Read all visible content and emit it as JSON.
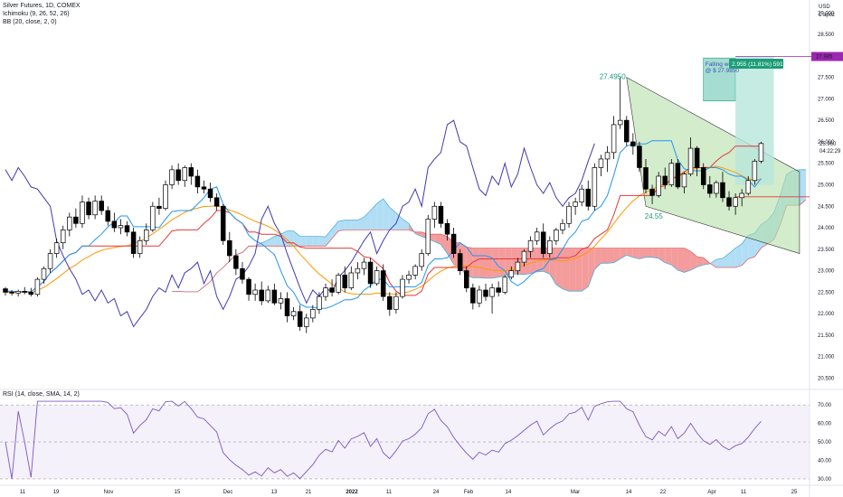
{
  "legend": {
    "symbol": "Silver Futures, 1D, COMEX",
    "ichimoku": "Ichimoku (9, 26, 52, 26)",
    "bb": "BB (20, close, 2, 0)",
    "rsi": "RSI (14, close, SMA, 14, 2)"
  },
  "axis": {
    "currency": "USD",
    "unit_label": "1 apoz",
    "price_ticks": [
      "29.000",
      "28.500",
      "28.000",
      "27.500",
      "27.000",
      "26.500",
      "26.000",
      "25.500",
      "25.000",
      "24.500",
      "24.000",
      "23.500",
      "23.000",
      "22.500",
      "22.000",
      "21.500",
      "21.000",
      "20.500"
    ],
    "price_values": [
      29.0,
      28.5,
      28.0,
      27.5,
      27.0,
      26.5,
      26.0,
      25.5,
      25.0,
      24.5,
      24.0,
      23.5,
      23.0,
      22.5,
      22.0,
      21.5,
      21.0,
      20.5
    ],
    "rsi_ticks": [
      "70.00",
      "60.00",
      "50.00",
      "40.00",
      "30.00"
    ],
    "rsi_values": [
      70,
      60,
      50,
      40,
      30
    ],
    "x_ticks": [
      "11",
      "19",
      "Nov",
      "15",
      "Dec",
      "13",
      "21",
      "2022",
      "11",
      "24",
      "Feb",
      "14",
      "Mar",
      "14",
      "22",
      "Apr",
      "11",
      "25"
    ]
  },
  "annotations": {
    "high_label": "27.4950",
    "low_label": "24.55",
    "target_text_1": "Falling wedge target",
    "target_text_2": "@ $ 27.9850",
    "position_label": "2.955 (11.81%) 591",
    "target_badge": "27.985",
    "current_price": "25.960",
    "countdown": "04:22:29"
  },
  "colors": {
    "bull": "#ffffff",
    "bear": "#000000",
    "tenkan": "#2196f3",
    "kijun": "#e53935",
    "bb_basis": "#ff9800",
    "lagging": "#3f3bb0",
    "cloud_bull": "#a5d8f3",
    "cloud_bear": "#f28b8b",
    "wedge": "#b5dfa8",
    "rsi_line": "#7e57c2",
    "rsi_band": "#ede7f6",
    "target_purple": "#9c27b0",
    "position_green": "#1b9e77"
  },
  "chart_data": {
    "type": "candlestick",
    "title": "Silver Futures, 1D, COMEX",
    "ylim": [
      20.3,
      29.3
    ],
    "rsi_ylim": [
      28,
      74
    ],
    "candles": [
      [
        22.58,
        22.62,
        22.42,
        22.5
      ],
      [
        22.5,
        22.55,
        22.42,
        22.48
      ],
      [
        22.48,
        22.56,
        22.4,
        22.52
      ],
      [
        22.52,
        22.62,
        22.45,
        22.5
      ],
      [
        22.5,
        22.6,
        22.4,
        22.45
      ],
      [
        22.45,
        22.85,
        22.4,
        22.8
      ],
      [
        22.8,
        23.1,
        22.7,
        23.05
      ],
      [
        23.05,
        23.5,
        22.95,
        23.4
      ],
      [
        23.4,
        23.75,
        23.3,
        23.65
      ],
      [
        23.65,
        24.05,
        23.5,
        23.95
      ],
      [
        23.95,
        24.35,
        23.8,
        24.25
      ],
      [
        24.25,
        24.45,
        24.0,
        24.1
      ],
      [
        24.1,
        24.75,
        24.0,
        24.6
      ],
      [
        24.6,
        24.7,
        24.2,
        24.3
      ],
      [
        24.3,
        24.75,
        24.2,
        24.62
      ],
      [
        24.62,
        24.75,
        24.3,
        24.4
      ],
      [
        24.4,
        24.5,
        24.05,
        24.15
      ],
      [
        24.15,
        24.35,
        23.9,
        24.0
      ],
      [
        24.0,
        24.2,
        23.85,
        24.05
      ],
      [
        24.05,
        24.15,
        23.8,
        23.9
      ],
      [
        23.9,
        24.0,
        23.3,
        23.4
      ],
      [
        23.4,
        23.8,
        23.3,
        23.7
      ],
      [
        23.7,
        24.1,
        23.6,
        23.95
      ],
      [
        23.95,
        24.6,
        23.9,
        24.5
      ],
      [
        24.5,
        24.7,
        24.3,
        24.45
      ],
      [
        24.45,
        25.1,
        24.4,
        25.0
      ],
      [
        25.0,
        25.45,
        24.9,
        25.35
      ],
      [
        25.35,
        25.5,
        25.0,
        25.1
      ],
      [
        25.1,
        25.45,
        24.95,
        25.4
      ],
      [
        25.4,
        25.5,
        25.0,
        25.2
      ],
      [
        25.2,
        25.35,
        24.8,
        24.95
      ],
      [
        24.95,
        25.1,
        24.8,
        24.9
      ],
      [
        24.9,
        25.05,
        24.6,
        24.7
      ],
      [
        24.7,
        24.8,
        24.4,
        24.5
      ],
      [
        24.5,
        24.55,
        23.6,
        23.7
      ],
      [
        23.7,
        23.9,
        23.2,
        23.35
      ],
      [
        23.35,
        23.5,
        22.9,
        23.05
      ],
      [
        23.05,
        23.2,
        22.7,
        22.8
      ],
      [
        22.8,
        22.85,
        22.3,
        22.45
      ],
      [
        22.45,
        22.7,
        22.3,
        22.55
      ],
      [
        22.55,
        22.75,
        22.2,
        22.3
      ],
      [
        22.3,
        22.65,
        22.25,
        22.55
      ],
      [
        22.55,
        22.7,
        22.2,
        22.25
      ],
      [
        22.25,
        22.5,
        22.1,
        22.35
      ],
      [
        22.35,
        22.5,
        21.8,
        21.95
      ],
      [
        21.95,
        22.15,
        21.85,
        22.05
      ],
      [
        22.05,
        22.2,
        21.6,
        21.7
      ],
      [
        21.7,
        22.0,
        21.55,
        21.9
      ],
      [
        21.9,
        22.2,
        21.8,
        22.1
      ],
      [
        22.1,
        22.5,
        22.0,
        22.4
      ],
      [
        22.4,
        22.7,
        22.3,
        22.6
      ],
      [
        22.6,
        22.8,
        22.4,
        22.5
      ],
      [
        22.5,
        22.95,
        22.45,
        22.9
      ],
      [
        22.9,
        23.1,
        22.5,
        22.6
      ],
      [
        22.6,
        23.1,
        22.55,
        22.95
      ],
      [
        22.95,
        23.2,
        22.8,
        23.05
      ],
      [
        23.05,
        23.3,
        22.9,
        23.2
      ],
      [
        23.2,
        23.3,
        22.6,
        22.7
      ],
      [
        22.7,
        23.1,
        22.65,
        23.0
      ],
      [
        23.0,
        23.15,
        22.3,
        22.4
      ],
      [
        22.4,
        22.5,
        21.95,
        22.1
      ],
      [
        22.1,
        22.5,
        22.0,
        22.4
      ],
      [
        22.4,
        22.9,
        22.35,
        22.8
      ],
      [
        22.8,
        23.0,
        22.7,
        22.9
      ],
      [
        22.9,
        23.15,
        22.8,
        23.1
      ],
      [
        23.1,
        23.5,
        23.0,
        23.4
      ],
      [
        23.4,
        24.3,
        23.35,
        24.2
      ],
      [
        24.2,
        24.6,
        24.0,
        24.5
      ],
      [
        24.5,
        24.6,
        24.0,
        24.1
      ],
      [
        24.1,
        24.2,
        23.7,
        23.85
      ],
      [
        23.85,
        24.0,
        23.3,
        23.4
      ],
      [
        23.4,
        23.5,
        22.9,
        23.0
      ],
      [
        23.0,
        23.1,
        22.5,
        22.6
      ],
      [
        22.6,
        22.7,
        22.1,
        22.25
      ],
      [
        22.25,
        22.65,
        22.15,
        22.55
      ],
      [
        22.55,
        22.7,
        22.3,
        22.4
      ],
      [
        22.4,
        22.7,
        22.0,
        22.6
      ],
      [
        22.6,
        22.75,
        22.4,
        22.5
      ],
      [
        22.5,
        22.9,
        22.45,
        22.85
      ],
      [
        22.85,
        23.1,
        22.8,
        23.0
      ],
      [
        23.0,
        23.3,
        22.9,
        23.2
      ],
      [
        23.2,
        23.5,
        23.1,
        23.45
      ],
      [
        23.45,
        23.8,
        23.3,
        23.7
      ],
      [
        23.7,
        24.0,
        23.6,
        23.9
      ],
      [
        23.9,
        24.1,
        23.3,
        23.4
      ],
      [
        23.4,
        23.8,
        23.3,
        23.7
      ],
      [
        23.7,
        24.0,
        23.6,
        23.95
      ],
      [
        23.95,
        24.2,
        23.85,
        24.1
      ],
      [
        24.1,
        24.6,
        24.0,
        24.5
      ],
      [
        24.5,
        24.7,
        24.3,
        24.6
      ],
      [
        24.6,
        25.0,
        24.5,
        24.9
      ],
      [
        24.9,
        25.1,
        24.4,
        24.5
      ],
      [
        24.5,
        25.5,
        24.4,
        25.4
      ],
      [
        25.4,
        25.7,
        25.2,
        25.6
      ],
      [
        25.6,
        25.9,
        25.3,
        25.75
      ],
      [
        25.75,
        26.6,
        25.6,
        26.4
      ],
      [
        26.4,
        27.5,
        26.3,
        26.5
      ],
      [
        26.5,
        26.6,
        25.9,
        26.0
      ],
      [
        26.0,
        26.2,
        25.7,
        25.9
      ],
      [
        25.9,
        26.0,
        25.3,
        25.4
      ],
      [
        25.4,
        25.6,
        24.8,
        24.9
      ],
      [
        24.9,
        25.0,
        24.55,
        24.75
      ],
      [
        24.75,
        25.3,
        24.7,
        25.2
      ],
      [
        25.2,
        25.4,
        24.9,
        25.0
      ],
      [
        25.0,
        25.6,
        24.95,
        25.5
      ],
      [
        25.5,
        25.6,
        24.9,
        24.95
      ],
      [
        24.95,
        25.3,
        24.8,
        25.25
      ],
      [
        25.25,
        26.1,
        25.2,
        25.85
      ],
      [
        25.85,
        25.9,
        25.2,
        25.4
      ],
      [
        25.4,
        25.5,
        24.9,
        25.0
      ],
      [
        25.0,
        25.2,
        24.7,
        24.8
      ],
      [
        24.8,
        25.1,
        24.7,
        25.05
      ],
      [
        25.05,
        25.3,
        24.6,
        24.7
      ],
      [
        24.7,
        24.85,
        24.4,
        24.5
      ],
      [
        24.5,
        24.8,
        24.3,
        24.7
      ],
      [
        24.7,
        24.9,
        24.5,
        24.8
      ],
      [
        24.8,
        25.2,
        24.75,
        25.1
      ],
      [
        25.1,
        25.6,
        25.0,
        25.55
      ],
      [
        25.55,
        26.0,
        25.5,
        25.96
      ]
    ]
  }
}
